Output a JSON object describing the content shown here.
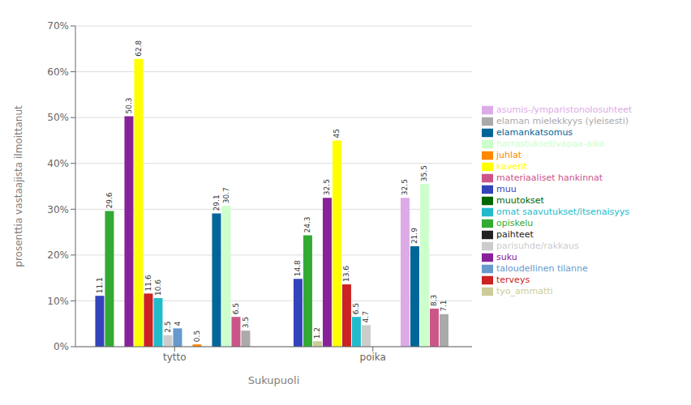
{
  "chart_data": {
    "type": "bar",
    "xlabel": "Sukupuoli",
    "ylabel": "prosenttia vastaajista ilmoittanut",
    "categories": [
      "tytto",
      "poika"
    ],
    "series": [
      {
        "name": "muu",
        "color": "#3344bb",
        "values": [
          11.1,
          14.8
        ]
      },
      {
        "name": "opiskelu",
        "color": "#33aa33",
        "values": [
          29.6,
          24.3
        ]
      },
      {
        "name": "tyo_ammatti",
        "color": "#cccc99",
        "values": [
          0,
          1.2
        ]
      },
      {
        "name": "suku",
        "color": "#882299",
        "values": [
          50.3,
          32.5
        ]
      },
      {
        "name": "kaverit",
        "color": "#ffff00",
        "values": [
          62.8,
          45
        ]
      },
      {
        "name": "terveys",
        "color": "#cc2222",
        "values": [
          11.6,
          13.6
        ]
      },
      {
        "name": "omat saavutukset/itsenaisyys",
        "color": "#22bbcc",
        "values": [
          10.6,
          6.5
        ]
      },
      {
        "name": "parisuhde/rakkaus",
        "color": "#cccccc",
        "values": [
          2.5,
          4.7
        ]
      },
      {
        "name": "taloudellinen tilanne",
        "color": "#6699cc",
        "values": [
          4,
          0
        ]
      },
      {
        "name": "muutokset",
        "color": "#006600",
        "values": [
          0,
          0
        ]
      },
      {
        "name": "juhlat",
        "color": "#ff8800",
        "values": [
          0.5,
          0
        ]
      },
      {
        "name": "asumis-/ymparistonolosuhteet",
        "color": "#ddaae8",
        "values": [
          0,
          32.5
        ]
      },
      {
        "name": "elamankatsomus",
        "color": "#006699",
        "values": [
          29.1,
          21.9
        ]
      },
      {
        "name": "harrastukset/vapaa-aika",
        "color": "#ccffcc",
        "values": [
          30.7,
          35.5
        ]
      },
      {
        "name": "materiaaliset hankinnat",
        "color": "#cc5588",
        "values": [
          6.5,
          8.3
        ]
      },
      {
        "name": "elaman mielekkyys (yleisesti)",
        "color": "#aaaaaa",
        "values": [
          3.5,
          7.1
        ]
      },
      {
        "name": "paihteet",
        "color": "#222222",
        "values": [
          0,
          0
        ]
      }
    ],
    "ylim": [
      0,
      70
    ],
    "yticks": [
      {
        "value": 0,
        "label": "0%"
      },
      {
        "value": 10,
        "label": "10%"
      },
      {
        "value": 20,
        "label": "20%"
      },
      {
        "value": 30,
        "label": "30%"
      },
      {
        "value": 40,
        "label": "40%"
      },
      {
        "value": 50,
        "label": "50%"
      },
      {
        "value": 60,
        "label": "60%"
      },
      {
        "value": 70,
        "label": "70%"
      }
    ],
    "grid": true,
    "data_labels": true,
    "legend": "right"
  }
}
